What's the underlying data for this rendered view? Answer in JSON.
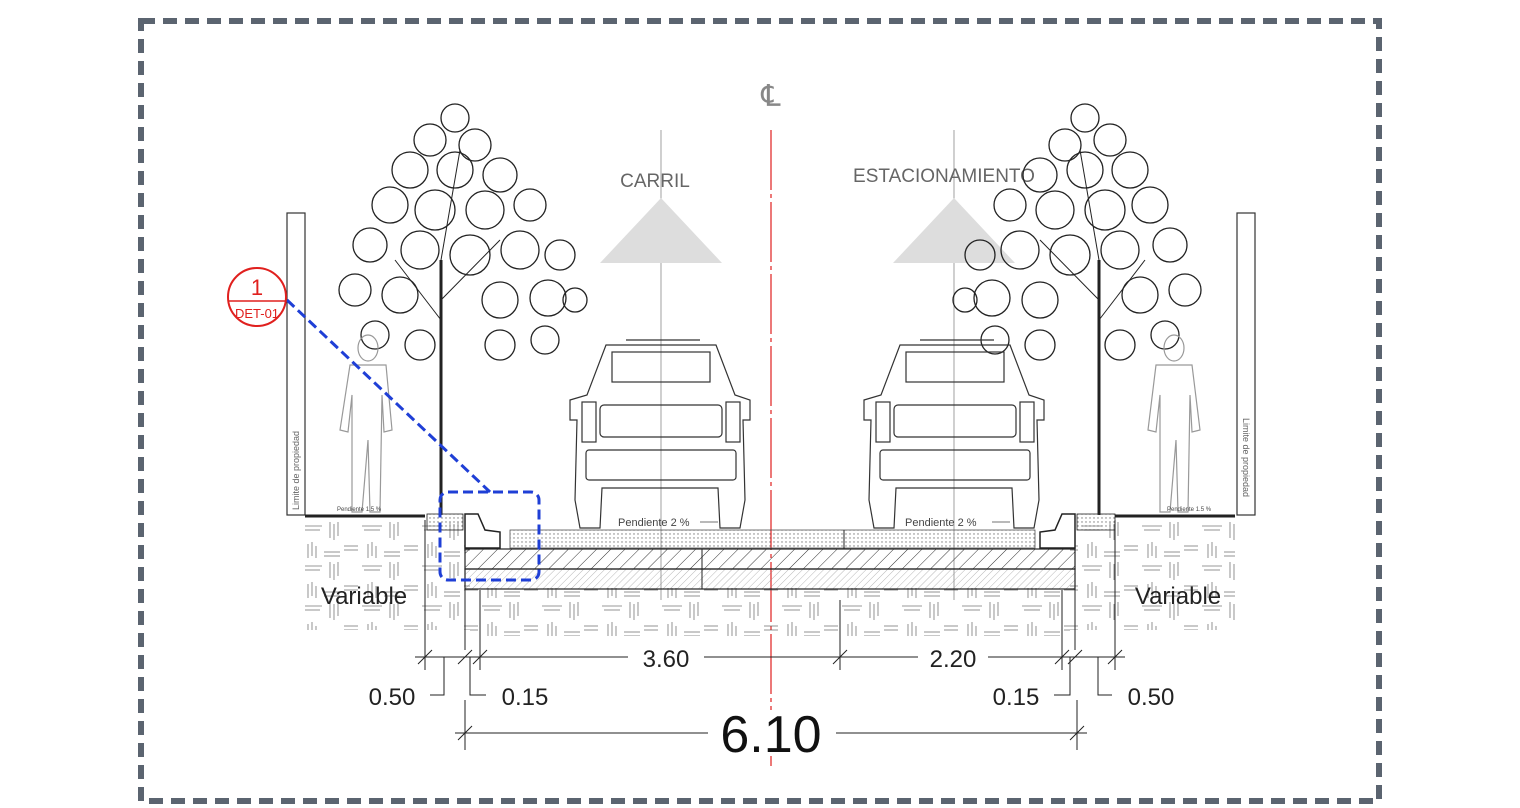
{
  "centerline_symbol": "℄",
  "labels": {
    "lane": "CARRIL",
    "parking": "ESTACIONAMIENTO",
    "slope_lane": "Pendiente 2 %",
    "slope_parking": "Pendiente 2 %",
    "slope_sidewalk_left": "Pendiente 1.5 %",
    "slope_sidewalk_right": "Pendiente 1.5 %",
    "property_limit_left": "Limite de propiedad",
    "property_limit_right": "Limite de propiedad",
    "variable_left": "Variable",
    "variable_right": "Variable"
  },
  "detail_callout": {
    "number": "1",
    "sheet": "DET-01"
  },
  "dimensions": {
    "left_sidewalk": "0.50",
    "left_curb": "0.15",
    "lane": "3.60",
    "parking": "2.20",
    "right_curb": "0.15",
    "right_sidewalk": "0.50",
    "total": "6.10"
  },
  "colors": {
    "frame": "#5b6470",
    "centerline": "#e0201e",
    "callout": "#e0201e",
    "detail_box": "#1f3fd6",
    "drawing": "#222222",
    "arrow_fill": "#dddddd",
    "label_gray": "#666666"
  }
}
